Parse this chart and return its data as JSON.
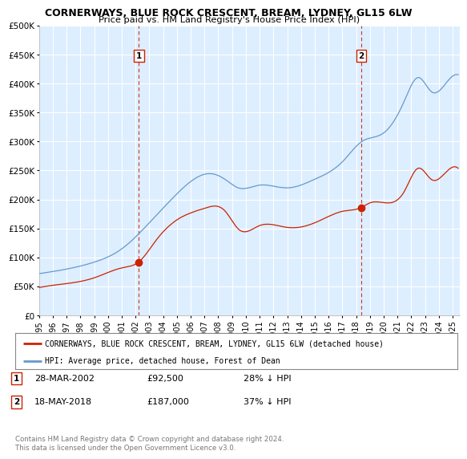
{
  "title": "CORNERWAYS, BLUE ROCK CRESCENT, BREAM, LYDNEY, GL15 6LW",
  "subtitle": "Price paid vs. HM Land Registry's House Price Index (HPI)",
  "title_fontsize": 9.5,
  "subtitle_fontsize": 8.5,
  "bg_color": "#ffffff",
  "chart_bg_color": "#ddeeff",
  "grid_color": "#ffffff",
  "hpi_color": "#6699cc",
  "price_color": "#cc2200",
  "vline_color": "#cc2200",
  "sale1_x": 2002.24,
  "sale1_price": 92500,
  "sale1_label": "1",
  "sale2_x": 2018.38,
  "sale2_price": 187000,
  "sale2_label": "2",
  "xmin": 1995,
  "xmax": 2025.5,
  "ymin": 0,
  "ymax": 500000,
  "yticks": [
    0,
    50000,
    100000,
    150000,
    200000,
    250000,
    300000,
    350000,
    400000,
    450000,
    500000
  ],
  "legend_house_label": "CORNERWAYS, BLUE ROCK CRESCENT, BREAM, LYDNEY, GL15 6LW (detached house)",
  "legend_hpi_label": "HPI: Average price, detached house, Forest of Dean",
  "note1_label": "1",
  "note1_date": "28-MAR-2002",
  "note1_price": "£92,500",
  "note1_hpi": "28% ↓ HPI",
  "note2_label": "2",
  "note2_date": "18-MAY-2018",
  "note2_price": "£187,000",
  "note2_hpi": "37% ↓ HPI",
  "footer": "Contains HM Land Registry data © Crown copyright and database right 2024.\nThis data is licensed under the Open Government Licence v3.0."
}
